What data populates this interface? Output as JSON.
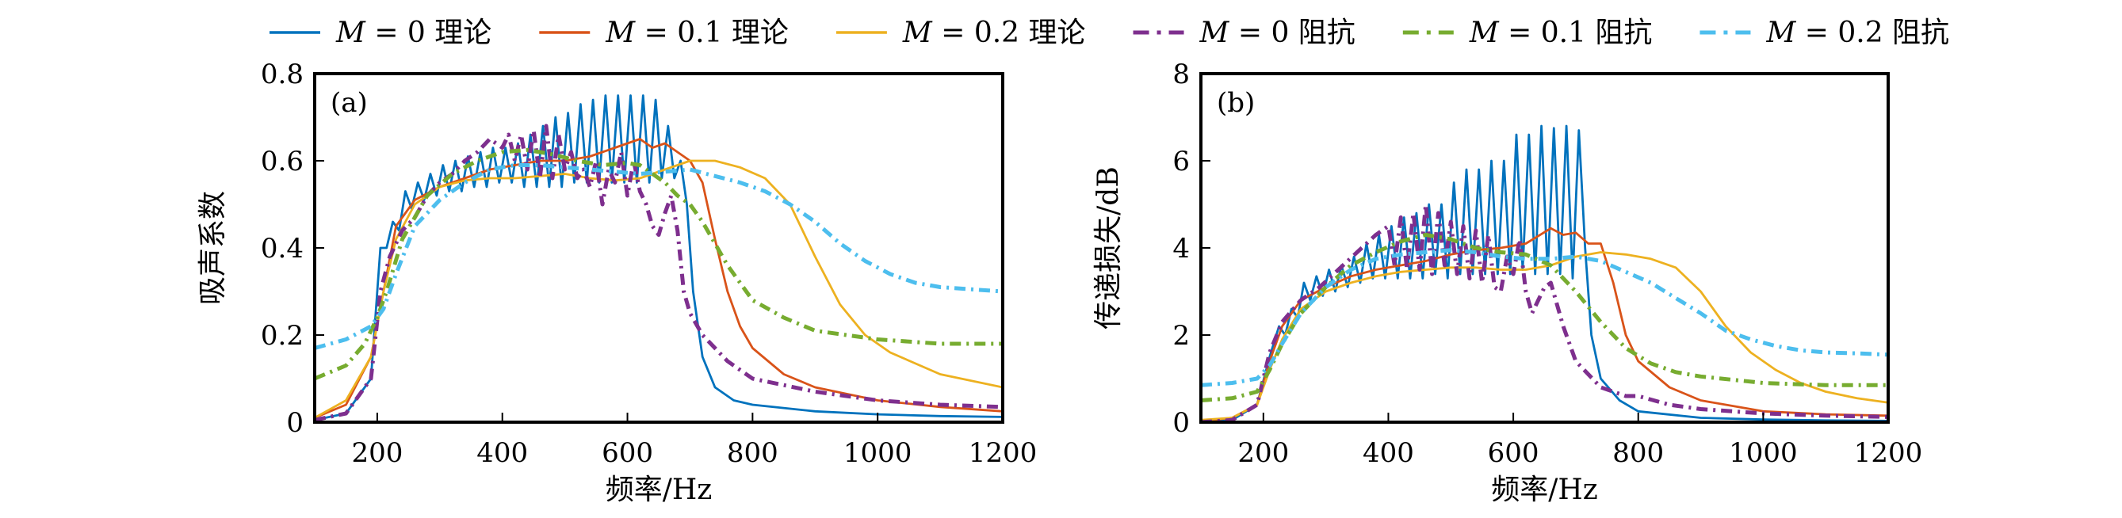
{
  "chart_data": [
    {
      "type": "line",
      "panel_label": "(a)",
      "xlabel": "频率/Hz",
      "ylabel": "吸声系数",
      "xlim": [
        100,
        1200
      ],
      "ylim": [
        0,
        0.8
      ],
      "xticks": [
        200,
        400,
        600,
        800,
        1000,
        1200
      ],
      "xtick_labels": [
        "200",
        "400",
        "600",
        "800",
        "1000",
        "1200"
      ],
      "yticks": [
        0,
        0.2,
        0.4,
        0.6,
        0.8
      ],
      "ytick_labels": [
        "0",
        "0.2",
        "0.4",
        "0.6",
        "0.8"
      ],
      "grid": false,
      "series": [
        {
          "name": "M=0理论",
          "x": [
            100,
            150,
            190,
            205,
            215,
            225,
            235,
            245,
            255,
            265,
            275,
            285,
            295,
            305,
            315,
            325,
            335,
            345,
            355,
            365,
            375,
            385,
            395,
            405,
            415,
            425,
            435,
            445,
            455,
            465,
            475,
            485,
            495,
            505,
            515,
            525,
            535,
            545,
            555,
            565,
            575,
            585,
            595,
            605,
            615,
            625,
            635,
            645,
            655,
            665,
            675,
            685,
            695,
            705,
            720,
            740,
            770,
            800,
            900,
            1000,
            1100,
            1200
          ],
          "y": [
            0.005,
            0.02,
            0.1,
            0.4,
            0.4,
            0.46,
            0.44,
            0.53,
            0.49,
            0.55,
            0.51,
            0.57,
            0.52,
            0.59,
            0.53,
            0.6,
            0.53,
            0.61,
            0.54,
            0.62,
            0.54,
            0.63,
            0.55,
            0.63,
            0.55,
            0.64,
            0.54,
            0.66,
            0.54,
            0.68,
            0.54,
            0.7,
            0.54,
            0.71,
            0.55,
            0.73,
            0.55,
            0.74,
            0.55,
            0.75,
            0.55,
            0.75,
            0.55,
            0.75,
            0.55,
            0.75,
            0.55,
            0.74,
            0.56,
            0.68,
            0.56,
            0.6,
            0.5,
            0.3,
            0.15,
            0.08,
            0.05,
            0.04,
            0.025,
            0.018,
            0.014,
            0.012
          ]
        },
        {
          "name": "M=0.1理论",
          "x": [
            100,
            150,
            190,
            210,
            230,
            260,
            300,
            340,
            380,
            420,
            460,
            500,
            540,
            560,
            580,
            600,
            620,
            640,
            660,
            680,
            700,
            720,
            740,
            760,
            780,
            800,
            850,
            900,
            1000,
            1100,
            1200
          ],
          "y": [
            0.01,
            0.04,
            0.15,
            0.3,
            0.45,
            0.51,
            0.54,
            0.56,
            0.58,
            0.59,
            0.6,
            0.6,
            0.61,
            0.62,
            0.63,
            0.64,
            0.65,
            0.63,
            0.64,
            0.62,
            0.6,
            0.55,
            0.42,
            0.3,
            0.22,
            0.17,
            0.11,
            0.08,
            0.05,
            0.035,
            0.025
          ]
        },
        {
          "name": "M=0.2理论",
          "x": [
            100,
            150,
            190,
            210,
            230,
            260,
            300,
            340,
            380,
            420,
            460,
            500,
            540,
            580,
            620,
            660,
            700,
            740,
            780,
            820,
            860,
            900,
            940,
            980,
            1020,
            1100,
            1200
          ],
          "y": [
            0.01,
            0.05,
            0.15,
            0.3,
            0.42,
            0.5,
            0.54,
            0.555,
            0.56,
            0.56,
            0.565,
            0.57,
            0.56,
            0.555,
            0.56,
            0.58,
            0.6,
            0.6,
            0.585,
            0.56,
            0.5,
            0.38,
            0.27,
            0.2,
            0.16,
            0.11,
            0.08
          ]
        },
        {
          "name": "M=0阻抗",
          "x": [
            100,
            150,
            190,
            205,
            220,
            240,
            260,
            280,
            300,
            320,
            340,
            360,
            380,
            400,
            410,
            420,
            430,
            440,
            450,
            460,
            470,
            480,
            490,
            500,
            510,
            520,
            530,
            540,
            550,
            560,
            570,
            580,
            590,
            600,
            610,
            620,
            630,
            640,
            650,
            660,
            670,
            680,
            690,
            700,
            720,
            760,
            800,
            900,
            1000,
            1100,
            1200
          ],
          "y": [
            0.005,
            0.02,
            0.1,
            0.3,
            0.38,
            0.44,
            0.47,
            0.52,
            0.55,
            0.57,
            0.6,
            0.62,
            0.65,
            0.63,
            0.66,
            0.6,
            0.66,
            0.58,
            0.67,
            0.56,
            0.68,
            0.56,
            0.66,
            0.58,
            0.62,
            0.56,
            0.58,
            0.54,
            0.6,
            0.5,
            0.58,
            0.55,
            0.62,
            0.52,
            0.6,
            0.53,
            0.5,
            0.45,
            0.43,
            0.48,
            0.52,
            0.44,
            0.3,
            0.25,
            0.2,
            0.14,
            0.1,
            0.07,
            0.05,
            0.04,
            0.035
          ]
        },
        {
          "name": "M=0.1阻抗",
          "x": [
            100,
            150,
            180,
            200,
            215,
            240,
            280,
            320,
            360,
            400,
            440,
            480,
            520,
            560,
            600,
            620,
            640,
            660,
            680,
            700,
            720,
            760,
            800,
            850,
            900,
            1000,
            1100,
            1200
          ],
          "y": [
            0.1,
            0.13,
            0.18,
            0.24,
            0.3,
            0.42,
            0.52,
            0.57,
            0.6,
            0.62,
            0.625,
            0.615,
            0.6,
            0.59,
            0.595,
            0.59,
            0.57,
            0.55,
            0.52,
            0.5,
            0.46,
            0.36,
            0.28,
            0.24,
            0.21,
            0.19,
            0.18,
            0.18
          ]
        },
        {
          "name": "M=0.2阻抗",
          "x": [
            100,
            150,
            190,
            210,
            230,
            260,
            300,
            340,
            380,
            420,
            460,
            500,
            540,
            580,
            620,
            660,
            700,
            740,
            780,
            820,
            860,
            900,
            940,
            980,
            1020,
            1060,
            1100,
            1150,
            1200
          ],
          "y": [
            0.17,
            0.19,
            0.22,
            0.26,
            0.34,
            0.45,
            0.51,
            0.55,
            0.58,
            0.59,
            0.59,
            0.585,
            0.58,
            0.575,
            0.57,
            0.575,
            0.58,
            0.565,
            0.55,
            0.53,
            0.5,
            0.46,
            0.41,
            0.37,
            0.34,
            0.32,
            0.31,
            0.305,
            0.3
          ]
        }
      ]
    },
    {
      "type": "line",
      "panel_label": "(b)",
      "xlabel": "频率/Hz",
      "ylabel": "传递损失/dB",
      "xlim": [
        100,
        1200
      ],
      "ylim": [
        0,
        8
      ],
      "xticks": [
        200,
        400,
        600,
        800,
        1000,
        1200
      ],
      "xtick_labels": [
        "200",
        "400",
        "600",
        "800",
        "1000",
        "1200"
      ],
      "yticks": [
        0,
        2,
        4,
        6,
        8
      ],
      "ytick_labels": [
        "0",
        "2",
        "4",
        "6",
        "8"
      ],
      "grid": false,
      "series": [
        {
          "name": "M=0理论",
          "x": [
            100,
            150,
            190,
            210,
            225,
            235,
            245,
            255,
            265,
            275,
            285,
            295,
            305,
            315,
            325,
            335,
            345,
            355,
            365,
            375,
            385,
            395,
            405,
            415,
            425,
            435,
            445,
            455,
            465,
            475,
            485,
            495,
            505,
            515,
            525,
            535,
            545,
            555,
            565,
            575,
            585,
            595,
            605,
            615,
            625,
            635,
            645,
            655,
            665,
            675,
            685,
            695,
            705,
            715,
            725,
            740,
            770,
            800,
            900,
            1000,
            1100,
            1200
          ],
          "y": [
            0,
            0.05,
            0.4,
            1.5,
            2.2,
            2.0,
            2.6,
            2.4,
            3.2,
            2.8,
            3.35,
            2.9,
            3.5,
            3.0,
            3.6,
            3.1,
            3.8,
            3.2,
            4.1,
            3.3,
            4.3,
            3.3,
            4.5,
            3.3,
            4.7,
            3.3,
            4.8,
            3.3,
            5.0,
            3.4,
            5.0,
            3.3,
            5.5,
            3.4,
            5.8,
            3.4,
            5.8,
            3.4,
            6.0,
            3.4,
            6.0,
            3.4,
            6.6,
            3.5,
            6.6,
            3.4,
            6.8,
            3.4,
            6.75,
            3.4,
            6.8,
            3.3,
            6.7,
            4.0,
            2.0,
            1.0,
            0.5,
            0.25,
            0.1,
            0.06,
            0.04,
            0.03
          ]
        },
        {
          "name": "M=0.1理论",
          "x": [
            100,
            150,
            190,
            210,
            230,
            260,
            300,
            340,
            380,
            420,
            460,
            500,
            540,
            580,
            620,
            660,
            680,
            700,
            720,
            740,
            760,
            780,
            800,
            850,
            900,
            1000,
            1100,
            1200
          ],
          "y": [
            0.02,
            0.1,
            0.4,
            1.4,
            2.2,
            2.8,
            3.1,
            3.35,
            3.5,
            3.6,
            3.7,
            3.85,
            3.95,
            4.0,
            4.1,
            4.45,
            4.3,
            4.35,
            4.1,
            4.1,
            3.2,
            2.0,
            1.4,
            0.8,
            0.5,
            0.25,
            0.18,
            0.15
          ]
        },
        {
          "name": "M=0.2理论",
          "x": [
            100,
            150,
            190,
            210,
            230,
            260,
            300,
            340,
            380,
            420,
            460,
            500,
            540,
            580,
            620,
            660,
            700,
            740,
            780,
            820,
            860,
            900,
            940,
            980,
            1020,
            1060,
            1100,
            1150,
            1200
          ],
          "y": [
            0.05,
            0.1,
            0.4,
            1.2,
            1.9,
            2.6,
            3.0,
            3.2,
            3.35,
            3.45,
            3.5,
            3.55,
            3.55,
            3.5,
            3.5,
            3.6,
            3.8,
            3.9,
            3.85,
            3.75,
            3.55,
            3.0,
            2.2,
            1.6,
            1.2,
            0.9,
            0.7,
            0.55,
            0.45
          ]
        },
        {
          "name": "M=0阻抗",
          "x": [
            100,
            150,
            190,
            210,
            230,
            260,
            290,
            320,
            350,
            380,
            400,
            410,
            420,
            430,
            440,
            450,
            460,
            470,
            480,
            490,
            500,
            510,
            520,
            530,
            540,
            550,
            560,
            570,
            580,
            590,
            600,
            610,
            620,
            630,
            640,
            650,
            660,
            680,
            700,
            740,
            780,
            800,
            850,
            900,
            1000,
            1100,
            1200
          ],
          "y": [
            0.0,
            0.05,
            0.4,
            1.6,
            2.3,
            2.8,
            3.1,
            3.5,
            3.9,
            4.3,
            4.5,
            3.6,
            4.7,
            3.5,
            4.8,
            3.5,
            5.0,
            3.4,
            4.8,
            3.6,
            4.6,
            3.4,
            4.5,
            3.3,
            4.4,
            3.2,
            4.3,
            3.1,
            3.0,
            3.8,
            3.4,
            4.2,
            3.0,
            2.5,
            2.8,
            3.1,
            3.2,
            2.2,
            1.4,
            0.8,
            0.6,
            0.6,
            0.4,
            0.3,
            0.2,
            0.15,
            0.12
          ]
        },
        {
          "name": "M=0.1阻抗",
          "x": [
            100,
            150,
            190,
            210,
            230,
            260,
            300,
            340,
            380,
            420,
            460,
            500,
            540,
            580,
            620,
            660,
            700,
            740,
            780,
            820,
            860,
            900,
            1000,
            1100,
            1200
          ],
          "y": [
            0.5,
            0.55,
            0.7,
            1.2,
            1.8,
            2.5,
            3.1,
            3.6,
            3.9,
            4.15,
            4.3,
            4.2,
            4.0,
            3.9,
            3.85,
            3.6,
            3.0,
            2.3,
            1.7,
            1.35,
            1.15,
            1.05,
            0.9,
            0.85,
            0.85
          ]
        },
        {
          "name": "M=0.2阻抗",
          "x": [
            100,
            150,
            190,
            210,
            230,
            260,
            300,
            340,
            380,
            420,
            460,
            500,
            540,
            580,
            620,
            660,
            700,
            740,
            780,
            820,
            860,
            900,
            940,
            980,
            1020,
            1060,
            1100,
            1150,
            1200
          ],
          "y": [
            0.85,
            0.9,
            1.0,
            1.3,
            1.8,
            2.5,
            3.1,
            3.5,
            3.75,
            3.85,
            3.9,
            3.95,
            3.9,
            3.8,
            3.75,
            3.75,
            3.8,
            3.7,
            3.45,
            3.2,
            2.85,
            2.5,
            2.1,
            1.9,
            1.75,
            1.65,
            1.6,
            1.58,
            1.55
          ]
        }
      ]
    }
  ],
  "legend": {
    "placement": "top",
    "entries": [
      {
        "label_var": "M",
        "label_eq": " = 0",
        "label_suffix": "理论",
        "color": "#0072BD",
        "style": "solid"
      },
      {
        "label_var": "M",
        "label_eq": " = 0.1",
        "label_suffix": "理论",
        "color": "#D95319",
        "style": "solid"
      },
      {
        "label_var": "M",
        "label_eq": " = 0.2",
        "label_suffix": "理论",
        "color": "#EDB120",
        "style": "solid"
      },
      {
        "label_var": "M",
        "label_eq": " = 0",
        "label_suffix": "阻抗",
        "color": "#7E2F8E",
        "style": "dashdot"
      },
      {
        "label_var": "M",
        "label_eq": " = 0.1",
        "label_suffix": "阻抗",
        "color": "#77AC30",
        "style": "dashdot"
      },
      {
        "label_var": "M",
        "label_eq": " = 0.2",
        "label_suffix": "阻抗",
        "color": "#4DBEEE",
        "style": "dashdot"
      }
    ]
  }
}
